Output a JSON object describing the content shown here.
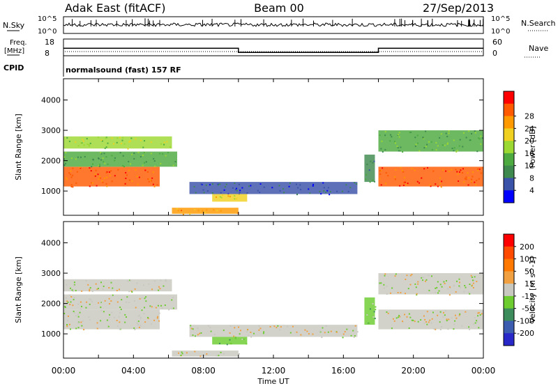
{
  "header": {
    "station": "Adak East (fitACF)",
    "beam": "Beam 00",
    "date": "27/Sep/2013"
  },
  "params": {
    "nsky_label": "N.Sky",
    "nsky_ticks": [
      "10^5",
      "10^0"
    ],
    "nsearch_label": "N.Search",
    "freq_label_1": "Freq.",
    "freq_label_2": "[MHz]",
    "freq_ticks": [
      "18",
      "8"
    ],
    "nave_label": "Nave",
    "nave_ticks": [
      "60",
      "0"
    ],
    "cpid_label": "CPID",
    "cpid_text": "normalsound (fast) 157 RF"
  },
  "colors": {
    "power": [
      "#0000ff",
      "#3a52a8",
      "#3e8a4e",
      "#4caa40",
      "#9cd832",
      "#f0d020",
      "#ff9900",
      "#ff5a00",
      "#ff0000"
    ],
    "velocity": [
      "#2828c8",
      "#3c5cb0",
      "#3c8c5c",
      "#6ccc30",
      "#c8c8c0",
      "#f0a040",
      "#ff7800",
      "#ff4a00",
      "#ff0000"
    ]
  },
  "chart_data": [
    {
      "type": "heatmap",
      "title": "",
      "xlabel": "Time UT",
      "ylabel": "Slant Range [km]",
      "x_ticks": [
        "00:00",
        "04:00",
        "08:00",
        "12:00",
        "16:00",
        "20:00",
        "00:00"
      ],
      "xlim_hours": [
        0,
        24
      ],
      "y_ticks": [
        "1000",
        "2000",
        "3000",
        "4000"
      ],
      "ylim": [
        200,
        4700
      ],
      "colorbar": {
        "label": "Power [dB]",
        "ticks": [
          "4",
          "8",
          "12",
          "16",
          "20",
          "24",
          "28"
        ],
        "range": [
          0,
          30
        ]
      },
      "bands": [
        {
          "t0": 0.0,
          "t1": 5.5,
          "r0": 1150,
          "r1": 1800,
          "level": 7
        },
        {
          "t0": 0.0,
          "t1": 6.2,
          "r0": 2400,
          "r1": 2800,
          "level": 4
        },
        {
          "t0": 0.0,
          "t1": 6.5,
          "r0": 1800,
          "r1": 2300,
          "level": 3
        },
        {
          "t0": 7.2,
          "t1": 16.8,
          "r0": 900,
          "r1": 1300,
          "level": 1
        },
        {
          "t0": 8.5,
          "t1": 10.5,
          "r0": 650,
          "r1": 900,
          "level": 5
        },
        {
          "t0": 17.2,
          "t1": 17.8,
          "r0": 1300,
          "r1": 2200,
          "level": 2
        },
        {
          "t0": 18.0,
          "t1": 24.0,
          "r0": 1150,
          "r1": 1800,
          "level": 7
        },
        {
          "t0": 18.0,
          "t1": 24.0,
          "r0": 2300,
          "r1": 3000,
          "level": 3
        },
        {
          "t0": 6.2,
          "t1": 10.0,
          "r0": 250,
          "r1": 450,
          "level": 6
        }
      ]
    },
    {
      "type": "heatmap",
      "title": "",
      "xlabel": "Time UT",
      "ylabel": "Slant Range [km]",
      "x_ticks": [
        "00:00",
        "04:00",
        "08:00",
        "12:00",
        "16:00",
        "20:00",
        "00:00"
      ],
      "xlim_hours": [
        0,
        24
      ],
      "y_ticks": [
        "1000",
        "2000",
        "3000",
        "4000"
      ],
      "ylim": [
        200,
        4700
      ],
      "colorbar": {
        "label": "Velocity [m s^-1]",
        "ticks": [
          "200",
          "100",
          "50",
          "15",
          "-15",
          "-50",
          "-100",
          "-200"
        ],
        "range": [
          -250,
          250
        ]
      },
      "bands": [
        {
          "t0": 0.0,
          "t1": 5.5,
          "r0": 1150,
          "r1": 1800,
          "level": 4
        },
        {
          "t0": 0.0,
          "t1": 6.2,
          "r0": 2400,
          "r1": 2800,
          "level": 4
        },
        {
          "t0": 0.0,
          "t1": 6.5,
          "r0": 1800,
          "r1": 2300,
          "level": 4
        },
        {
          "t0": 7.2,
          "t1": 16.8,
          "r0": 900,
          "r1": 1300,
          "level": 4
        },
        {
          "t0": 8.5,
          "t1": 10.5,
          "r0": 650,
          "r1": 900,
          "level": 3
        },
        {
          "t0": 17.2,
          "t1": 17.8,
          "r0": 1300,
          "r1": 2200,
          "level": 3
        },
        {
          "t0": 18.0,
          "t1": 24.0,
          "r0": 1150,
          "r1": 1800,
          "level": 4
        },
        {
          "t0": 18.0,
          "t1": 24.0,
          "r0": 2300,
          "r1": 3000,
          "level": 4
        },
        {
          "t0": 6.2,
          "t1": 10.0,
          "r0": 250,
          "r1": 450,
          "level": 4
        }
      ]
    }
  ],
  "freq_series": {
    "steps": [
      {
        "t0": 0.0,
        "t1": 10.0,
        "mhz": 12.5
      },
      {
        "t0": 10.0,
        "t1": 18.0,
        "mhz": 10.0
      },
      {
        "t0": 18.0,
        "t1": 24.0,
        "mhz": 12.5
      }
    ]
  }
}
